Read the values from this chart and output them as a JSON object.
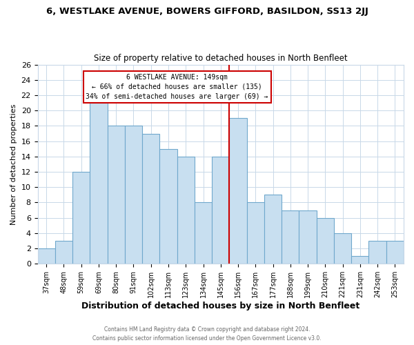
{
  "title": "6, WESTLAKE AVENUE, BOWERS GIFFORD, BASILDON, SS13 2JJ",
  "subtitle": "Size of property relative to detached houses in North Benfleet",
  "xlabel": "Distribution of detached houses by size in North Benfleet",
  "ylabel": "Number of detached properties",
  "categories": [
    "37sqm",
    "48sqm",
    "59sqm",
    "69sqm",
    "80sqm",
    "91sqm",
    "102sqm",
    "113sqm",
    "123sqm",
    "134sqm",
    "145sqm",
    "156sqm",
    "167sqm",
    "177sqm",
    "188sqm",
    "199sqm",
    "210sqm",
    "221sqm",
    "231sqm",
    "242sqm",
    "253sqm"
  ],
  "values": [
    2,
    3,
    12,
    21,
    18,
    18,
    17,
    15,
    14,
    8,
    14,
    19,
    8,
    9,
    7,
    7,
    6,
    4,
    1,
    3,
    3
  ],
  "bar_color": "#c8dff0",
  "bar_edge_color": "#6fa8cc",
  "highlight_index": 10,
  "highlight_line_color": "#cc0000",
  "annotation_box_text_line1": "6 WESTLAKE AVENUE: 149sqm",
  "annotation_box_text_line2": "← 66% of detached houses are smaller (135)",
  "annotation_box_text_line3": "34% of semi-detached houses are larger (69) →",
  "annotation_box_edge_color": "#cc0000",
  "annotation_box_face_color": "#ffffff",
  "ylim": [
    0,
    26
  ],
  "yticks": [
    0,
    2,
    4,
    6,
    8,
    10,
    12,
    14,
    16,
    18,
    20,
    22,
    24,
    26
  ],
  "footer_line1": "Contains HM Land Registry data © Crown copyright and database right 2024.",
  "footer_line2": "Contains public sector information licensed under the Open Government Licence v3.0.",
  "background_color": "#ffffff",
  "grid_color": "#c8d8e8"
}
